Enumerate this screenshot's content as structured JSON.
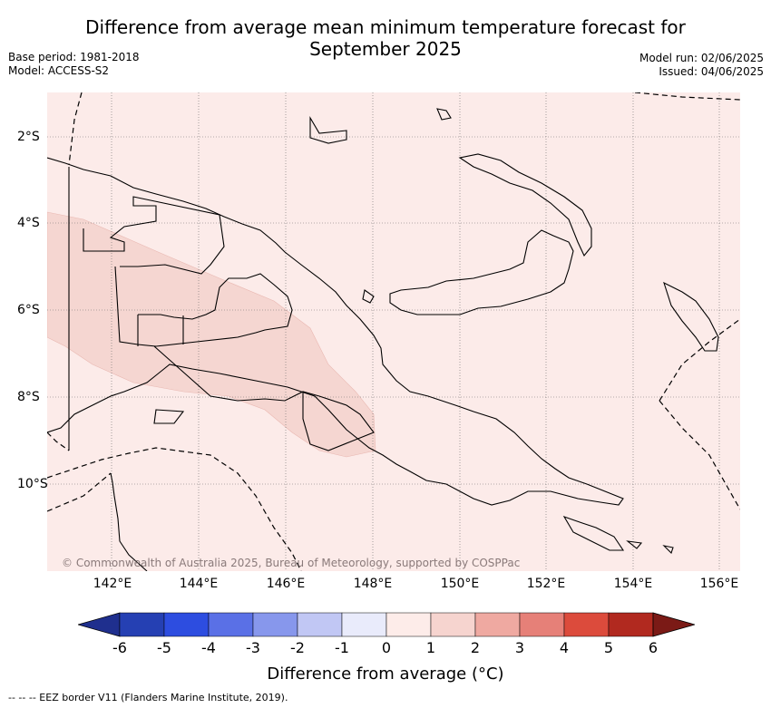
{
  "title_line1": "Difference from average mean minimum temperature forecast for",
  "title_line2": "September 2025",
  "meta_left": [
    "Base period: 1981-2018",
    "Model: ACCESS-S2"
  ],
  "meta_right": [
    "Model run: 02/06/2025",
    "Issued: 04/06/2025"
  ],
  "map": {
    "lon_labels": [
      "142°E",
      "144°E",
      "146°E",
      "148°E",
      "150°E",
      "152°E",
      "154°E",
      "156°E"
    ],
    "lat_labels": [
      "2°S",
      "4°S",
      "6°S",
      "8°S",
      "10°S"
    ],
    "background_color": "#fcebe9",
    "anomaly_band_color": "#f5d6d1",
    "anomaly_band_value": "1 to 2"
  },
  "copyright": "© Commonwealth of Australia 2025, Bureau of Meteorology, supported by COSPPac",
  "colorbar": {
    "ticks": [
      "-6",
      "-5",
      "-4",
      "-3",
      "-2",
      "-1",
      "0",
      "1",
      "2",
      "3",
      "4",
      "5",
      "6"
    ],
    "colors": [
      "#1f2f8e",
      "#2540b3",
      "#2d4de0",
      "#5a70e6",
      "#8797ec",
      "#c1c7f4",
      "#e9ebfb",
      "#fdece9",
      "#f6d4cf",
      "#efa9a1",
      "#e68078",
      "#dc4b3c",
      "#b1291f",
      "#7b1a16"
    ],
    "label": "Difference from average (°C)"
  },
  "legend_text": "--  --  -- EEZ border V11 (Flanders Marine Institute, 2019)."
}
